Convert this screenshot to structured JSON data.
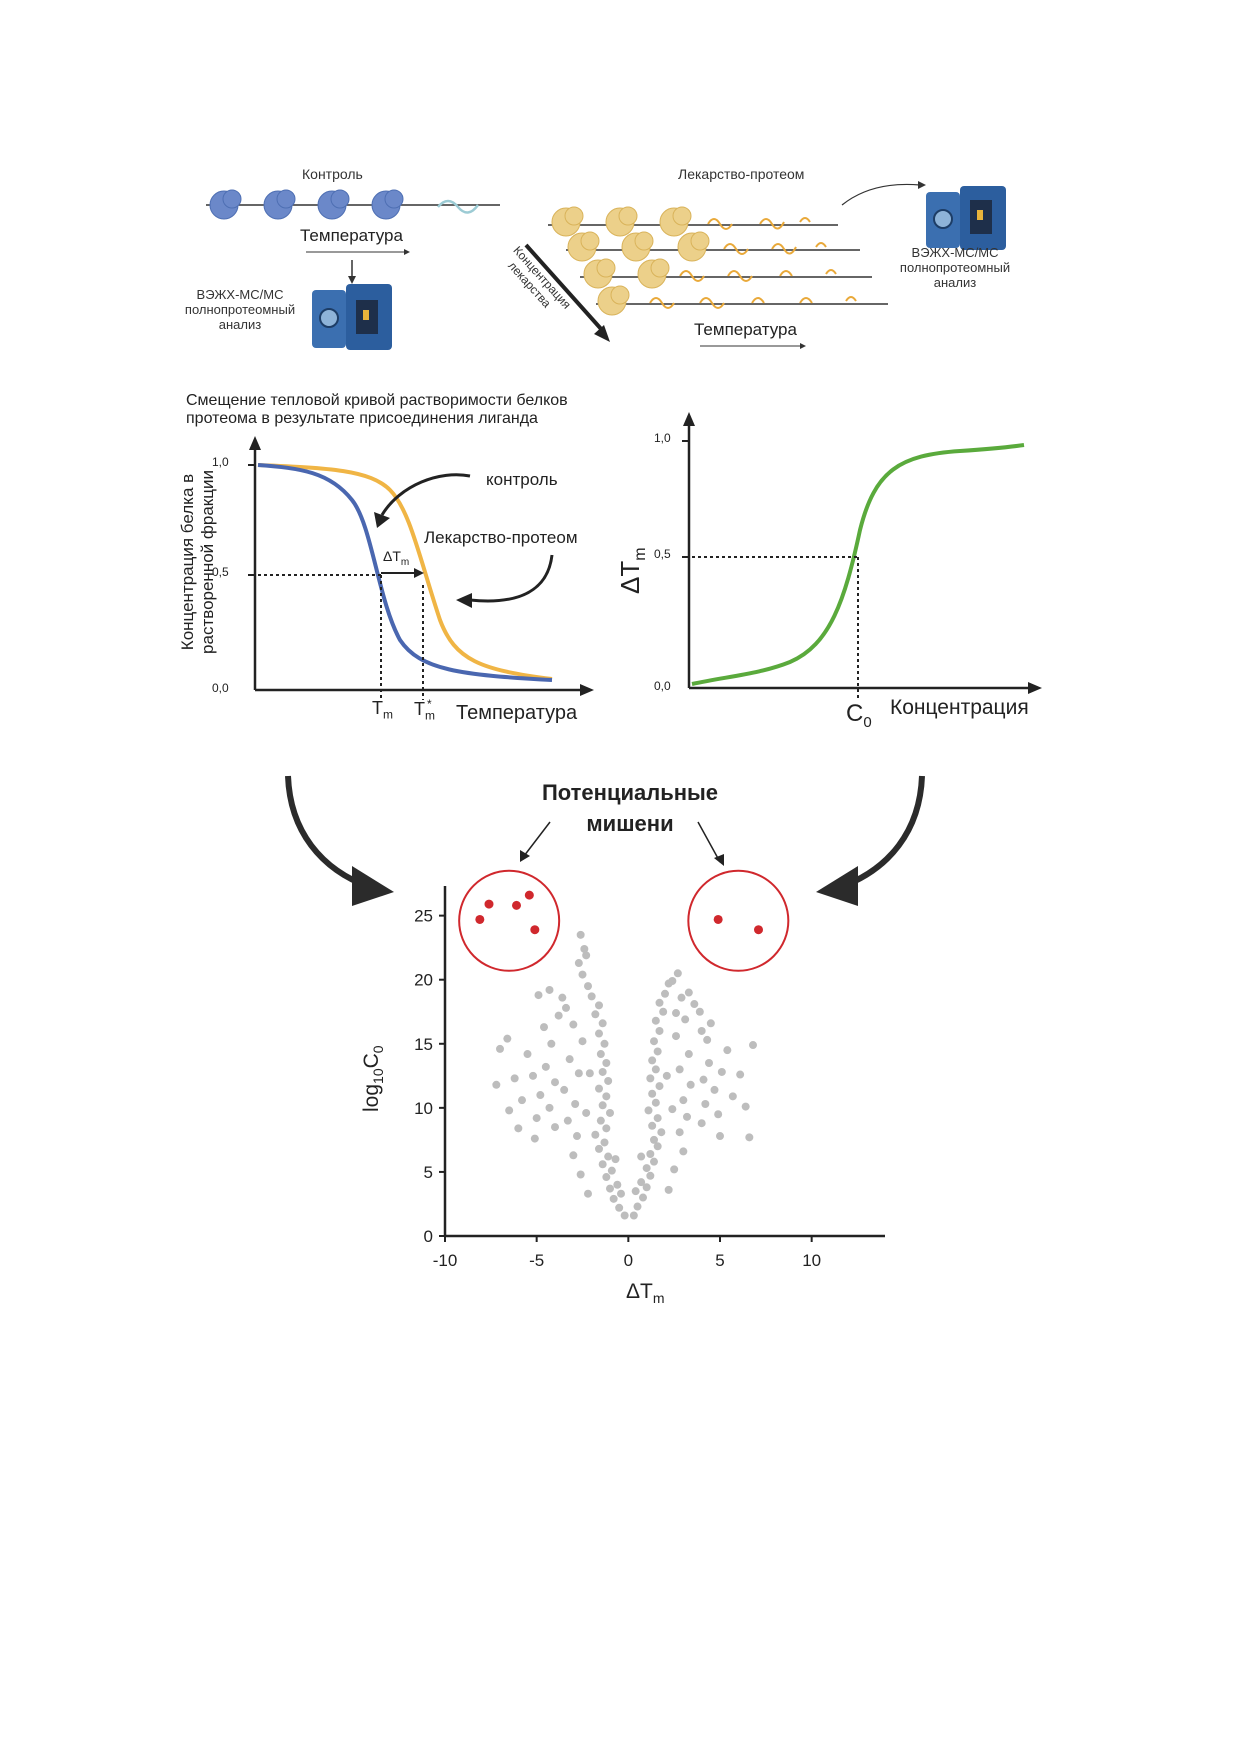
{
  "top": {
    "control_label": "Контроль",
    "control_temp_label": "Температура",
    "instrument_left": [
      "ВЭЖХ-МС/МС",
      "полнопротеомный",
      "анализ"
    ],
    "drug_label": "Лекарство-протеом",
    "drug_conc_label": [
      "Концентрация",
      "лекарства"
    ],
    "drug_temp_label": "Температура",
    "instrument_right": [
      "ВЭЖХ-МС/МС",
      "полнопротеомный",
      "анализ"
    ]
  },
  "melt_chart": {
    "heading": [
      "Смещение тепловой кривой растворимости белков",
      "протеома в результате присоединения лиганда"
    ],
    "ylabel": [
      "Концентрация белка в",
      "растворенной фракции"
    ],
    "yticks": [
      "1,0",
      "0,5",
      "0,0"
    ],
    "xlabel": "Температура",
    "tm_label": "T",
    "tm_sub": "m",
    "tm_star_label": "T",
    "tm_star_sub": "m",
    "tm_star_sup": "*",
    "delta_label": "ΔT",
    "delta_sub": "m",
    "control_annotation": "контроль",
    "drug_annotation": "Лекарство-протеом",
    "colors": {
      "control": "#4a67b0",
      "drug": "#f0b545"
    }
  },
  "dose_chart": {
    "ylabel": "ΔT",
    "ylabel_sub": "m",
    "yticks": [
      "1,0",
      "0,5",
      "0,0"
    ],
    "xlabel": "Концентрация",
    "c0_label": "C",
    "c0_sub": "0",
    "color": "#5aaa3c"
  },
  "targets": {
    "title": [
      "Потенциальные",
      "мишени"
    ],
    "highlight_color": "#d0282d"
  },
  "chart_data": {
    "type": "scatter",
    "xlabel": "ΔT",
    "xlabel_sub": "m",
    "ylabel": "log",
    "ylabel_sub": "10",
    "ylabel_tail": "C",
    "ylabel_tail_sub": "0",
    "xlim": [
      -10,
      14
    ],
    "ylim": [
      0,
      27
    ],
    "xticks": [
      -10,
      -5,
      0,
      5,
      10
    ],
    "yticks": [
      0,
      5,
      10,
      15,
      20,
      25
    ],
    "point_color": "#bdbdbd",
    "left_targets": [
      [
        -8.1,
        24.7
      ],
      [
        -7.6,
        25.9
      ],
      [
        -6.1,
        25.8
      ],
      [
        -5.4,
        26.6
      ],
      [
        -5.1,
        23.9
      ]
    ],
    "right_targets": [
      [
        4.9,
        24.7
      ],
      [
        7.1,
        23.9
      ]
    ],
    "points": [
      [
        -0.2,
        1.6
      ],
      [
        0.3,
        1.6
      ],
      [
        -0.5,
        2.2
      ],
      [
        0.5,
        2.3
      ],
      [
        -0.8,
        2.9
      ],
      [
        0.8,
        3.0
      ],
      [
        -1.0,
        3.7
      ],
      [
        1.0,
        3.8
      ],
      [
        -0.6,
        4.0
      ],
      [
        0.7,
        4.2
      ],
      [
        -1.2,
        4.6
      ],
      [
        1.2,
        4.7
      ],
      [
        -0.9,
        5.1
      ],
      [
        1.0,
        5.3
      ],
      [
        -1.4,
        5.6
      ],
      [
        1.4,
        5.8
      ],
      [
        -1.1,
        6.2
      ],
      [
        1.2,
        6.4
      ],
      [
        -1.6,
        6.8
      ],
      [
        1.6,
        7.0
      ],
      [
        -1.3,
        7.3
      ],
      [
        1.4,
        7.5
      ],
      [
        -1.8,
        7.9
      ],
      [
        1.8,
        8.1
      ],
      [
        -1.2,
        8.4
      ],
      [
        1.3,
        8.6
      ],
      [
        -1.5,
        9.0
      ],
      [
        1.6,
        9.2
      ],
      [
        -1.0,
        9.6
      ],
      [
        1.1,
        9.8
      ],
      [
        -1.4,
        10.2
      ],
      [
        1.5,
        10.4
      ],
      [
        -1.2,
        10.9
      ],
      [
        1.3,
        11.1
      ],
      [
        -1.6,
        11.5
      ],
      [
        1.7,
        11.7
      ],
      [
        -1.1,
        12.1
      ],
      [
        1.2,
        12.3
      ],
      [
        -1.4,
        12.8
      ],
      [
        1.5,
        13.0
      ],
      [
        -1.2,
        13.5
      ],
      [
        1.3,
        13.7
      ],
      [
        -1.5,
        14.2
      ],
      [
        1.6,
        14.4
      ],
      [
        -1.3,
        15.0
      ],
      [
        1.4,
        15.2
      ],
      [
        -1.6,
        15.8
      ],
      [
        1.7,
        16.0
      ],
      [
        -1.4,
        16.6
      ],
      [
        1.5,
        16.8
      ],
      [
        -1.8,
        17.3
      ],
      [
        1.9,
        17.5
      ],
      [
        -1.6,
        18.0
      ],
      [
        1.7,
        18.2
      ],
      [
        -2.0,
        18.7
      ],
      [
        2.0,
        18.9
      ],
      [
        -2.2,
        19.5
      ],
      [
        2.2,
        19.7
      ],
      [
        -2.5,
        20.4
      ],
      [
        2.4,
        19.9
      ],
      [
        -2.7,
        21.3
      ],
      [
        2.7,
        20.5
      ],
      [
        -2.4,
        22.4
      ],
      [
        -2.6,
        23.5
      ],
      [
        -2.3,
        21.9
      ],
      [
        2.9,
        18.6
      ],
      [
        3.3,
        19.0
      ],
      [
        2.6,
        17.4
      ],
      [
        -2.2,
        3.3
      ],
      [
        2.2,
        3.6
      ],
      [
        -2.6,
        4.8
      ],
      [
        2.5,
        5.2
      ],
      [
        -3.0,
        6.3
      ],
      [
        3.0,
        6.6
      ],
      [
        -2.8,
        7.8
      ],
      [
        2.8,
        8.1
      ],
      [
        -3.3,
        9.0
      ],
      [
        3.2,
        9.3
      ],
      [
        -2.9,
        10.3
      ],
      [
        3.0,
        10.6
      ],
      [
        -3.5,
        11.4
      ],
      [
        3.4,
        11.8
      ],
      [
        -2.7,
        12.7
      ],
      [
        2.8,
        13.0
      ],
      [
        -3.2,
        13.8
      ],
      [
        3.3,
        14.2
      ],
      [
        -2.5,
        15.2
      ],
      [
        2.6,
        15.6
      ],
      [
        -3.0,
        16.5
      ],
      [
        3.1,
        16.9
      ],
      [
        -3.4,
        17.8
      ],
      [
        3.6,
        18.1
      ],
      [
        -4.0,
        8.5
      ],
      [
        4.0,
        8.8
      ],
      [
        -4.3,
        10.0
      ],
      [
        4.2,
        10.3
      ],
      [
        -4.0,
        12.0
      ],
      [
        4.1,
        12.2
      ],
      [
        -4.5,
        13.2
      ],
      [
        4.4,
        13.5
      ],
      [
        -4.2,
        15.0
      ],
      [
        4.3,
        15.3
      ],
      [
        -4.6,
        16.3
      ],
      [
        4.5,
        16.6
      ],
      [
        -3.8,
        17.2
      ],
      [
        3.9,
        17.5
      ],
      [
        -4.8,
        11.0
      ],
      [
        4.7,
        11.4
      ],
      [
        -5.0,
        9.2
      ],
      [
        4.9,
        9.5
      ],
      [
        -5.2,
        12.5
      ],
      [
        5.1,
        12.8
      ],
      [
        -5.5,
        14.2
      ],
      [
        5.4,
        14.5
      ],
      [
        -5.8,
        10.6
      ],
      [
        5.7,
        10.9
      ],
      [
        -6.2,
        12.3
      ],
      [
        6.1,
        12.6
      ],
      [
        -6.5,
        9.8
      ],
      [
        6.4,
        10.1
      ],
      [
        -7.0,
        14.6
      ],
      [
        6.8,
        14.9
      ],
      [
        -6.6,
        15.4
      ],
      [
        -7.2,
        11.8
      ],
      [
        5.0,
        7.8
      ],
      [
        -5.1,
        7.6
      ],
      [
        6.6,
        7.7
      ],
      [
        -6.0,
        8.4
      ],
      [
        -4.9,
        18.8
      ],
      [
        -4.3,
        19.2
      ],
      [
        -3.6,
        18.6
      ],
      [
        4.0,
        16.0
      ],
      [
        2.1,
        12.5
      ],
      [
        -2.1,
        12.7
      ],
      [
        2.4,
        9.9
      ],
      [
        -2.3,
        9.6
      ],
      [
        -0.7,
        6.0
      ],
      [
        0.7,
        6.2
      ],
      [
        -0.4,
        3.3
      ],
      [
        0.4,
        3.5
      ]
    ]
  }
}
